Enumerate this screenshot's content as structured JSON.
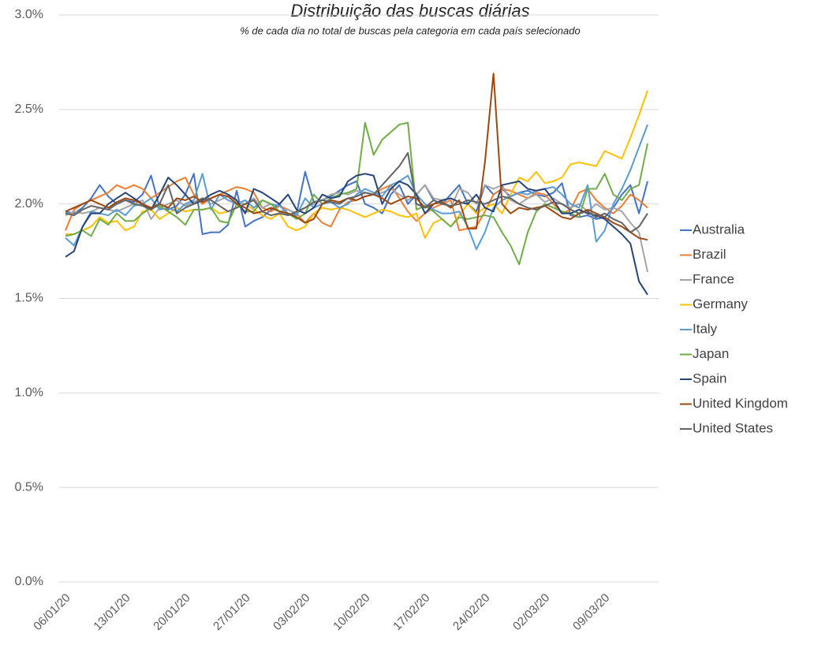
{
  "chart_data": {
    "type": "line",
    "title": "Distribuição das buscas diárias",
    "subtitle": "% de cada dia no total de buscas pela categoria em cada país selecionado",
    "categories": [
      "06/01/20",
      null,
      null,
      null,
      null,
      null,
      null,
      "13/01/20",
      null,
      null,
      null,
      null,
      null,
      null,
      "20/01/20",
      null,
      null,
      null,
      null,
      null,
      null,
      "27/01/20",
      null,
      null,
      null,
      null,
      null,
      null,
      "03/02/20",
      null,
      null,
      null,
      null,
      null,
      null,
      "10/02/20",
      null,
      null,
      null,
      null,
      null,
      null,
      "17/02/20",
      null,
      null,
      null,
      null,
      null,
      null,
      "24/02/20",
      null,
      null,
      null,
      null,
      null,
      null,
      "02/03/20",
      null,
      null,
      null,
      null,
      null,
      null,
      "09/03/20",
      null,
      null,
      null,
      null,
      null
    ],
    "ylim": [
      0,
      3
    ],
    "yticks": [
      {
        "value": 0,
        "label": "0.0%"
      },
      {
        "value": 0.5,
        "label": "0.5%"
      },
      {
        "value": 1,
        "label": "1.0%"
      },
      {
        "value": 1.5,
        "label": "1.5%"
      },
      {
        "value": 2,
        "label": "2.0%"
      },
      {
        "value": 2.5,
        "label": "2.5%"
      },
      {
        "value": 3,
        "label": "3.0%"
      }
    ],
    "grid": true,
    "legend": "right",
    "series": [
      {
        "name": "Australia",
        "color": "#4472c4",
        "values": [
          1.96,
          1.95,
          1.98,
          2.03,
          2.1,
          2.04,
          2.0,
          2.02,
          2.01,
          2.05,
          2.15,
          1.98,
          1.97,
          1.99,
          2.05,
          2.16,
          1.84,
          1.85,
          1.85,
          1.89,
          2.07,
          1.88,
          1.91,
          1.93,
          1.97,
          2.0,
          1.94,
          1.95,
          2.17,
          2.01,
          2.02,
          2.04,
          2.07,
          2.1,
          2.12,
          2.0,
          1.98,
          1.95,
          2.05,
          2.1,
          2.0,
          2.05,
          2.1,
          2.02,
          2.0,
          2.05,
          2.1,
          2.0,
          1.96,
          2.1,
          2.05,
          2.08,
          2.04,
          2.06,
          2.07,
          2.05,
          2.04,
          2.06,
          2.11,
          1.94,
          1.93,
          1.94,
          1.92,
          1.93,
          1.98,
          2.05,
          2.1,
          1.95,
          2.12
        ]
      },
      {
        "name": "Brazil",
        "color": "#ed7d31",
        "values": [
          1.86,
          1.97,
          2.0,
          2.02,
          2.04,
          2.06,
          2.1,
          2.08,
          2.1,
          2.08,
          2.03,
          2.06,
          2.09,
          2.12,
          2.14,
          2.05,
          2.0,
          2.03,
          2.05,
          2.07,
          2.09,
          2.08,
          2.06,
          1.98,
          1.96,
          1.99,
          1.97,
          1.95,
          1.9,
          1.95,
          1.9,
          1.88,
          1.97,
          2.01,
          2.02,
          2.04,
          2.05,
          2.08,
          2.1,
          2.03,
          1.96,
          1.91,
          1.95,
          1.98,
          2.0,
          2.02,
          1.86,
          1.87,
          1.88,
          1.96,
          2.05,
          2.08,
          2.07,
          2.05,
          2.03,
          2.06,
          2.05,
          2.0,
          1.95,
          1.97,
          2.06,
          2.08,
          2.02,
          1.98,
          1.95,
          1.99,
          2.05,
          2.02,
          1.98
        ]
      },
      {
        "name": "France",
        "color": "#a5a5a5",
        "values": [
          1.94,
          1.96,
          1.95,
          1.96,
          1.98,
          1.97,
          1.96,
          1.98,
          2.0,
          2.02,
          1.92,
          1.98,
          2.0,
          2.02,
          1.99,
          2.01,
          2.03,
          2.0,
          2.02,
          2.04,
          2.01,
          2.0,
          2.03,
          1.98,
          2.0,
          1.96,
          1.97,
          1.95,
          1.98,
          2.0,
          2.02,
          2.05,
          2.06,
          2.05,
          2.07,
          2.06,
          2.05,
          2.06,
          2.08,
          2.05,
          2.02,
          2.05,
          2.1,
          2.03,
          2.02,
          1.98,
          2.08,
          2.06,
          2.0,
          2.1,
          2.08,
          2.1,
          2.02,
          2.0,
          2.03,
          2.05,
          2.01,
          2.03,
          2.0,
          1.98,
          2.0,
          1.96,
          2.0,
          1.97,
          1.98,
          1.96,
          1.9,
          1.85,
          1.64
        ]
      },
      {
        "name": "Germany",
        "color": "#ffc000",
        "values": [
          1.84,
          1.84,
          1.86,
          1.88,
          1.93,
          1.9,
          1.91,
          1.86,
          1.88,
          1.96,
          1.97,
          1.92,
          1.95,
          1.98,
          1.96,
          1.97,
          1.97,
          1.98,
          1.95,
          1.96,
          1.98,
          2.0,
          1.97,
          1.94,
          1.92,
          1.95,
          1.88,
          1.86,
          1.88,
          1.95,
          1.98,
          1.97,
          1.98,
          1.97,
          1.95,
          1.93,
          1.95,
          1.97,
          1.96,
          1.94,
          1.93,
          1.95,
          1.82,
          1.9,
          1.92,
          1.88,
          1.94,
          2.0,
          1.95,
          1.98,
          2.0,
          1.95,
          2.05,
          2.14,
          2.12,
          2.17,
          2.11,
          2.12,
          2.14,
          2.21,
          2.22,
          2.21,
          2.2,
          2.28,
          2.26,
          2.24,
          2.35,
          2.47,
          2.6
        ]
      },
      {
        "name": "Italy",
        "color": "#5b9bd5",
        "values": [
          1.82,
          1.78,
          1.88,
          1.96,
          1.95,
          1.94,
          1.97,
          1.94,
          1.99,
          2.0,
          2.03,
          1.97,
          1.98,
          1.96,
          2.0,
          2.02,
          2.16,
          1.97,
          2.05,
          2.02,
          2.0,
          2.02,
          1.98,
          2.02,
          2.0,
          1.99,
          1.95,
          1.94,
          2.03,
          1.98,
          2.0,
          2.01,
          1.98,
          2.0,
          2.05,
          2.08,
          2.06,
          2.04,
          2.1,
          2.12,
          2.15,
          2.05,
          2.0,
          1.97,
          1.95,
          1.95,
          1.96,
          1.88,
          1.76,
          1.85,
          1.98,
          2.02,
          2.04,
          2.06,
          2.05,
          2.07,
          2.08,
          2.09,
          2.05,
          2.0,
          1.98,
          2.1,
          1.8,
          1.86,
          2.0,
          2.08,
          2.18,
          2.3,
          2.42
        ]
      },
      {
        "name": "Japan",
        "color": "#70ad47",
        "values": [
          1.83,
          1.84,
          1.86,
          1.83,
          1.92,
          1.89,
          1.95,
          1.91,
          1.91,
          1.95,
          1.98,
          1.99,
          1.96,
          1.93,
          1.89,
          1.97,
          1.97,
          1.98,
          1.91,
          1.9,
          2.0,
          1.96,
          1.96,
          2.02,
          2.0,
          1.96,
          1.95,
          1.92,
          1.95,
          2.05,
          2.0,
          2.03,
          2.05,
          2.06,
          2.08,
          2.43,
          2.26,
          2.34,
          2.38,
          2.42,
          2.43,
          1.97,
          1.99,
          1.96,
          1.92,
          1.88,
          1.93,
          1.92,
          1.93,
          1.94,
          1.93,
          1.85,
          1.78,
          1.68,
          1.85,
          1.96,
          2.0,
          1.98,
          1.96,
          1.95,
          1.93,
          2.08,
          2.08,
          2.16,
          2.05,
          2.02,
          2.08,
          2.1,
          2.32
        ]
      },
      {
        "name": "Spain",
        "color": "#264478",
        "values": [
          1.72,
          1.75,
          1.88,
          1.95,
          1.95,
          2.0,
          2.03,
          2.06,
          2.03,
          2.0,
          1.97,
          2.05,
          2.14,
          2.1,
          2.05,
          2.0,
          2.02,
          2.05,
          2.07,
          2.05,
          2.02,
          1.95,
          2.08,
          2.06,
          2.03,
          2.0,
          2.05,
          1.97,
          1.95,
          1.98,
          2.05,
          2.03,
          2.04,
          2.12,
          2.15,
          2.16,
          2.15,
          2.0,
          2.08,
          2.12,
          2.1,
          2.05,
          1.95,
          2.0,
          2.02,
          2.03,
          2.01,
          2.0,
          2.05,
          1.98,
          1.96,
          2.1,
          2.11,
          2.12,
          2.08,
          2.07,
          2.08,
          2.02,
          1.95,
          1.95,
          1.97,
          1.95,
          1.94,
          1.92,
          1.88,
          1.84,
          1.79,
          1.59,
          1.52
        ]
      },
      {
        "name": "United Kingdom",
        "color": "#9e480e",
        "values": [
          1.96,
          1.98,
          2.0,
          2.02,
          2.0,
          1.98,
          2.01,
          2.03,
          2.02,
          2.0,
          1.98,
          2.0,
          1.98,
          2.03,
          2.02,
          2.04,
          2.01,
          2.03,
          2.05,
          2.04,
          2.0,
          1.98,
          1.95,
          1.96,
          1.98,
          1.96,
          1.95,
          1.93,
          1.9,
          1.92,
          2.0,
          2.02,
          2.01,
          2.03,
          2.02,
          2.04,
          2.05,
          2.03,
          2.0,
          2.02,
          2.04,
          2.03,
          1.98,
          2.0,
          2.01,
          1.98,
          2.02,
          1.87,
          1.87,
          2.22,
          2.69,
          2.0,
          1.95,
          1.98,
          1.97,
          1.98,
          1.99,
          1.96,
          1.93,
          1.92,
          1.95,
          1.97,
          1.95,
          1.93,
          1.9,
          1.88,
          1.85,
          1.82,
          1.81
        ]
      },
      {
        "name": "United States",
        "color": "#636363",
        "values": [
          1.95,
          1.94,
          1.97,
          1.99,
          1.98,
          1.97,
          2.0,
          2.02,
          2.0,
          1.99,
          1.97,
          2.0,
          2.1,
          1.95,
          1.98,
          2.0,
          2.03,
          2.02,
          1.99,
          1.96,
          1.98,
          2.0,
          2.02,
          1.96,
          1.94,
          1.95,
          1.94,
          1.96,
          1.98,
          2.01,
          2.02,
          2.01,
          2.0,
          2.03,
          2.04,
          2.06,
          2.05,
          2.1,
          2.15,
          2.2,
          2.27,
          2.0,
          1.98,
          2.02,
          2.0,
          1.99,
          2.0,
          2.02,
          2.01,
          2.0,
          2.02,
          2.04,
          2.03,
          2.0,
          1.98,
          1.97,
          1.99,
          2.01,
          2.0,
          1.97,
          1.95,
          1.96,
          1.93,
          1.95,
          1.92,
          1.9,
          1.85,
          1.88,
          1.95
        ]
      }
    ]
  }
}
